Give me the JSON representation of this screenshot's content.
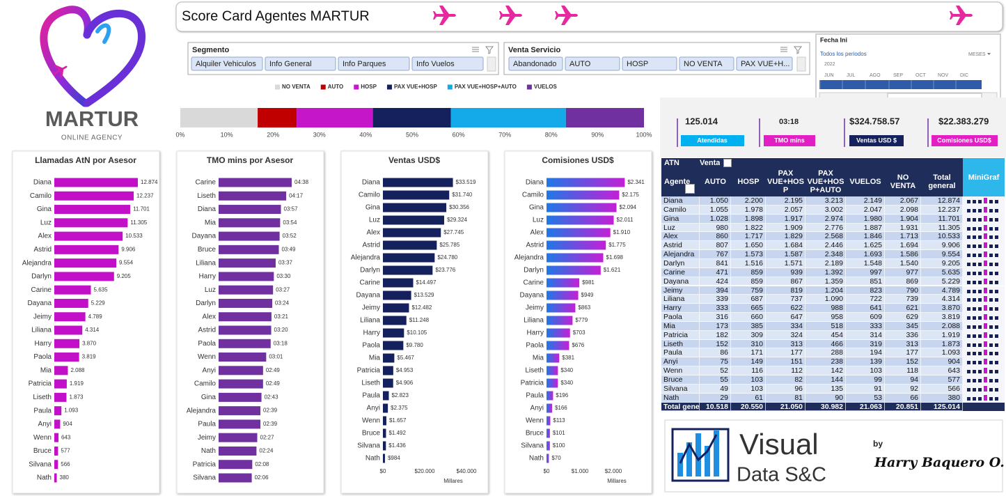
{
  "header": {
    "title": "Score Card Agentes MARTUR"
  },
  "logo": {
    "name": "MARTUR",
    "tagline": "ONLINE AGENCY"
  },
  "slicers": [
    {
      "title": "Segmento",
      "items": [
        "Alquiler Vehiculos",
        "Info General",
        "Info Parques",
        "Info Vuelos"
      ]
    },
    {
      "title": "Venta Servicio",
      "items": [
        "Abandonado",
        "AUTO",
        "HOSP",
        "NO VENTA",
        "PAX VUE+H..."
      ]
    }
  ],
  "timeline": {
    "title": "Fecha Ini",
    "period": "Todos los periodos",
    "level": "MESES",
    "year": "2022",
    "months": [
      "JUN",
      "JUL",
      "AGO",
      "SEP",
      "OCT",
      "NOV",
      "DIC"
    ]
  },
  "kpis": [
    {
      "value": "125.014",
      "label": "Atendidas"
    },
    {
      "value": "03:18",
      "label": "TMO mins"
    },
    {
      "value": "$324.758.57",
      "label": "Ventas USD $"
    },
    {
      "value": "$22.383.279",
      "label": "Comisiones USD$"
    }
  ],
  "table": {
    "corner": "ATN",
    "filter_label": "Venta",
    "row_label": "Agente",
    "columns": [
      "AUTO",
      "HOSP",
      "PAX VUE+HOSP",
      "PAX VUE+HOSP+AUTO",
      "VUELOS",
      "NO VENTA",
      "Total general",
      "MiniGraf"
    ],
    "rows": [
      [
        "Diana",
        "1.050",
        "2.200",
        "2.195",
        "3.213",
        "2.149",
        "2.067",
        "12.874"
      ],
      [
        "Camilo",
        "1.055",
        "1.978",
        "2.057",
        "3.002",
        "2.047",
        "2.098",
        "12.237"
      ],
      [
        "Gina",
        "1.028",
        "1.898",
        "1.917",
        "2.974",
        "1.980",
        "1.904",
        "11.701"
      ],
      [
        "Luz",
        "980",
        "1.822",
        "1.909",
        "2.776",
        "1.887",
        "1.931",
        "11.305"
      ],
      [
        "Alex",
        "860",
        "1.717",
        "1.829",
        "2.568",
        "1.846",
        "1.713",
        "10.533"
      ],
      [
        "Astrid",
        "807",
        "1.650",
        "1.684",
        "2.446",
        "1.625",
        "1.694",
        "9.906"
      ],
      [
        "Alejandra",
        "767",
        "1.573",
        "1.587",
        "2.348",
        "1.693",
        "1.586",
        "9.554"
      ],
      [
        "Darlyn",
        "841",
        "1.516",
        "1.571",
        "2.189",
        "1.548",
        "1.540",
        "9.205"
      ],
      [
        "Carine",
        "471",
        "859",
        "939",
        "1.392",
        "997",
        "977",
        "5.635"
      ],
      [
        "Dayana",
        "424",
        "859",
        "867",
        "1.359",
        "851",
        "869",
        "5.229"
      ],
      [
        "Jeimy",
        "394",
        "759",
        "819",
        "1.204",
        "823",
        "790",
        "4.789"
      ],
      [
        "Liliana",
        "339",
        "687",
        "737",
        "1.090",
        "722",
        "739",
        "4.314"
      ],
      [
        "Harry",
        "333",
        "665",
        "622",
        "988",
        "641",
        "621",
        "3.870"
      ],
      [
        "Paola",
        "316",
        "660",
        "647",
        "958",
        "609",
        "629",
        "3.819"
      ],
      [
        "Mia",
        "173",
        "385",
        "334",
        "518",
        "333",
        "345",
        "2.088"
      ],
      [
        "Patricia",
        "182",
        "309",
        "324",
        "454",
        "314",
        "336",
        "1.919"
      ],
      [
        "Liseth",
        "152",
        "310",
        "313",
        "466",
        "319",
        "313",
        "1.873"
      ],
      [
        "Paula",
        "86",
        "171",
        "177",
        "288",
        "194",
        "177",
        "1.093"
      ],
      [
        "Anyi",
        "75",
        "149",
        "151",
        "238",
        "139",
        "152",
        "904"
      ],
      [
        "Wenn",
        "52",
        "116",
        "112",
        "142",
        "103",
        "118",
        "643"
      ],
      [
        "Bruce",
        "55",
        "103",
        "82",
        "144",
        "99",
        "94",
        "577"
      ],
      [
        "Silvana",
        "49",
        "103",
        "96",
        "135",
        "91",
        "92",
        "566"
      ],
      [
        "Nath",
        "29",
        "61",
        "81",
        "90",
        "53",
        "66",
        "380"
      ]
    ],
    "total": [
      "Total general",
      "10.518",
      "20.550",
      "21.050",
      "30.982",
      "21.063",
      "20.851",
      "125.014"
    ]
  },
  "credits": {
    "brand_line1": "Visual",
    "brand_line2": "Data S&C",
    "by": "by",
    "author": "Harry Baquero O."
  },
  "chart_data": [
    {
      "type": "stackedbar",
      "categories": [
        null
      ],
      "legend": "top",
      "series": [
        {
          "name": "NO VENTA",
          "color": "#d9d9d9",
          "values": [
            16.68
          ]
        },
        {
          "name": "AUTO",
          "color": "#c00000",
          "values": [
            8.41
          ]
        },
        {
          "name": "HOSP",
          "color": "#c616c9",
          "values": [
            16.44
          ]
        },
        {
          "name": "PAX VUE+HOSP",
          "color": "#14215c",
          "values": [
            16.84
          ]
        },
        {
          "name": "PAX VUE+HOSP+AUTO",
          "color": "#14a9e8",
          "values": [
            24.78
          ]
        },
        {
          "name": "VUELOS",
          "color": "#7030a0",
          "values": [
            16.85
          ]
        }
      ],
      "xlim": [
        0,
        100
      ],
      "xticks": [
        {
          "value": 0,
          "label": "0%"
        },
        {
          "value": 10,
          "label": "10%"
        },
        {
          "value": 20,
          "label": "20%"
        },
        {
          "value": 30,
          "label": "30%"
        },
        {
          "value": 40,
          "label": "40%"
        },
        {
          "value": 50,
          "label": "50%"
        },
        {
          "value": 60,
          "label": "60%"
        },
        {
          "value": 70,
          "label": "70%"
        },
        {
          "value": 80,
          "label": "80%"
        },
        {
          "value": 90,
          "label": "90%"
        },
        {
          "value": 100,
          "label": "100%"
        }
      ]
    },
    {
      "type": "bar",
      "title": "Llamadas AtN por Asesor",
      "color": "#c210c8",
      "categories": [
        "Diana",
        "Camilo",
        "Gina",
        "Luz",
        "Alex",
        "Astrid",
        "Alejandra",
        "Darlyn",
        "Carine",
        "Dayana",
        "Jeimy",
        "Liliana",
        "Harry",
        "Paola",
        "Mia",
        "Patricia",
        "Liseth",
        "Paula",
        "Anyi",
        "Wenn",
        "Bruce",
        "Silvana",
        "Nath"
      ],
      "values": [
        12874,
        12237,
        11701,
        11305,
        10533,
        9906,
        9554,
        9205,
        5635,
        5229,
        4789,
        4314,
        3870,
        3819,
        2088,
        1919,
        1873,
        1093,
        904,
        643,
        577,
        566,
        380
      ],
      "value_labels": [
        "12.874",
        "12.237",
        "11.701",
        "11.305",
        "10.533",
        "9.906",
        "9.554",
        "9.205",
        "5.635",
        "5.229",
        "4.789",
        "4.314",
        "3.870",
        "3.819",
        "2.088",
        "1.919",
        "1.873",
        "1.093",
        "904",
        "643",
        "577",
        "566",
        "380"
      ]
    },
    {
      "type": "bar",
      "title": "TMO mins por Asesor",
      "color": "#7030a0",
      "categories": [
        "Carine",
        "Liseth",
        "Diana",
        "Mia",
        "Dayana",
        "Bruce",
        "Liliana",
        "Harry",
        "Luz",
        "Darlyn",
        "Alex",
        "Astrid",
        "Paola",
        "Wenn",
        "Anyi",
        "Camilo",
        "Gina",
        "Alejandra",
        "Paula",
        "Jeimy",
        "Nath",
        "Patricia",
        "Silvana"
      ],
      "values": [
        278,
        257,
        237,
        234,
        232,
        229,
        217,
        210,
        207,
        204,
        201,
        200,
        198,
        181,
        169,
        169,
        163,
        159,
        159,
        147,
        144,
        128,
        126
      ],
      "value_labels": [
        "04:38",
        "04:17",
        "03:57",
        "03:54",
        "03:52",
        "03:49",
        "03:37",
        "03:30",
        "03:27",
        "03:24",
        "03:21",
        "03:20",
        "03:18",
        "03:01",
        "02:49",
        "02:49",
        "02:43",
        "02:39",
        "02:39",
        "02:27",
        "02:24",
        "02:08",
        "02:06"
      ]
    },
    {
      "type": "bar",
      "title": "Ventas USD$",
      "color": "#14215c",
      "xlabel": "Millares",
      "categories": [
        "Diana",
        "Camilo",
        "Gina",
        "Luz",
        "Alex",
        "Astrid",
        "Alejandra",
        "Darlyn",
        "Carine",
        "Dayana",
        "Jeimy",
        "Liliana",
        "Harry",
        "Paola",
        "Mia",
        "Patricia",
        "Liseth",
        "Paula",
        "Anyi",
        "Wenn",
        "Bruce",
        "Silvana",
        "Nath"
      ],
      "values": [
        33519,
        31740,
        30356,
        29324,
        27745,
        25785,
        24780,
        23776,
        14497,
        13529,
        12482,
        11248,
        10105,
        9780,
        5467,
        4953,
        4906,
        2823,
        2375,
        1657,
        1492,
        1436,
        984
      ],
      "value_labels": [
        "$33.519",
        "$31.740",
        "$30.356",
        "$29.324",
        "$27.745",
        "$25.785",
        "$24.780",
        "$23.776",
        "$14.497",
        "$13.529",
        "$12.482",
        "$11.248",
        "$10.105",
        "$9.780",
        "$5.467",
        "$4.953",
        "$4.906",
        "$2.823",
        "$2.375",
        "$1.657",
        "$1.492",
        "$1.436",
        "$984"
      ],
      "xlim": [
        0,
        40000
      ],
      "xticks": [
        {
          "value": 0,
          "label": "$0"
        },
        {
          "value": 20000,
          "label": "$20.000"
        },
        {
          "value": 40000,
          "label": "$40.000"
        }
      ]
    },
    {
      "type": "bar",
      "title": "Comisiones USD$",
      "color": "#1f78e6",
      "gradient": [
        "#1f78e6",
        "#c41fd6"
      ],
      "xlabel": "Millares",
      "categories": [
        "Diana",
        "Camilo",
        "Gina",
        "Luz",
        "Alex",
        "Astrid",
        "Alejandra",
        "Darlyn",
        "Carine",
        "Dayana",
        "Jeimy",
        "Liliana",
        "Harry",
        "Paola",
        "Mia",
        "Liseth",
        "Patricia",
        "Paula",
        "Anyi",
        "Wenn",
        "Bruce",
        "Silvana",
        "Nath"
      ],
      "values": [
        2341,
        2175,
        2094,
        2011,
        1910,
        1775,
        1698,
        1621,
        981,
        949,
        863,
        779,
        703,
        676,
        381,
        340,
        340,
        196,
        166,
        113,
        101,
        100,
        70
      ],
      "value_labels": [
        "$2.341",
        "$2.175",
        "$2.094",
        "$2.011",
        "$1.910",
        "$1.775",
        "$1.698",
        "$1.621",
        "$981",
        "$949",
        "$863",
        "$779",
        "$703",
        "$676",
        "$381",
        "$340",
        "$340",
        "$196",
        "$166",
        "$113",
        "$101",
        "$100",
        "$70"
      ],
      "xlim": [
        0,
        2500
      ],
      "xticks": [
        {
          "value": 0,
          "label": "$0"
        },
        {
          "value": 1000,
          "label": "$1.000"
        },
        {
          "value": 2000,
          "label": "$2.000"
        }
      ]
    }
  ]
}
